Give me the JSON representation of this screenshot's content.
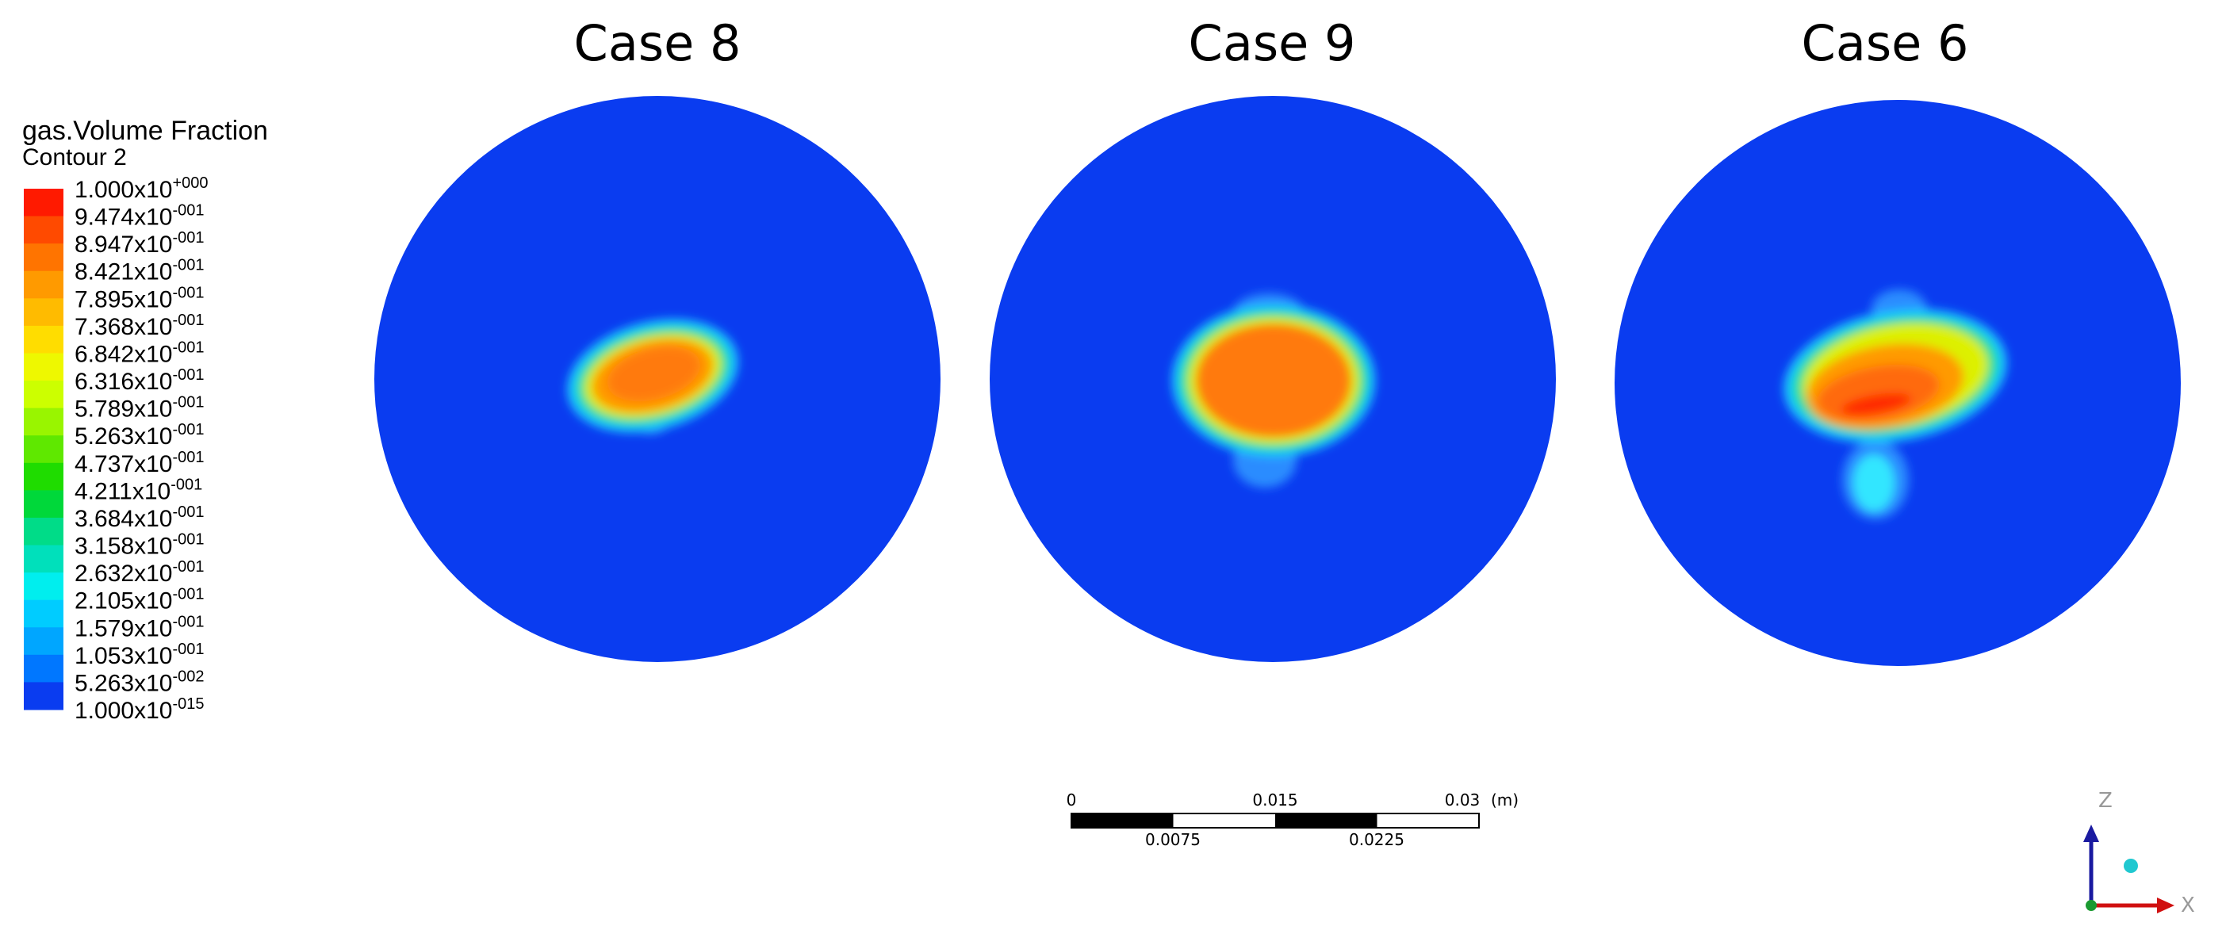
{
  "panels": [
    {
      "title": "Case 8"
    },
    {
      "title": "Case 9"
    },
    {
      "title": "Case 6"
    }
  ],
  "legend": {
    "title": "gas.Volume Fraction",
    "subtitle": "Contour 2",
    "levels": [
      {
        "mantissa": "1.000x10",
        "exponent": "+000"
      },
      {
        "mantissa": "9.474x10",
        "exponent": "-001"
      },
      {
        "mantissa": "8.947x10",
        "exponent": "-001"
      },
      {
        "mantissa": "8.421x10",
        "exponent": "-001"
      },
      {
        "mantissa": "7.895x10",
        "exponent": "-001"
      },
      {
        "mantissa": "7.368x10",
        "exponent": "-001"
      },
      {
        "mantissa": "6.842x10",
        "exponent": "-001"
      },
      {
        "mantissa": "6.316x10",
        "exponent": "-001"
      },
      {
        "mantissa": "5.789x10",
        "exponent": "-001"
      },
      {
        "mantissa": "5.263x10",
        "exponent": "-001"
      },
      {
        "mantissa": "4.737x10",
        "exponent": "-001"
      },
      {
        "mantissa": "4.211x10",
        "exponent": "-001"
      },
      {
        "mantissa": "3.684x10",
        "exponent": "-001"
      },
      {
        "mantissa": "3.158x10",
        "exponent": "-001"
      },
      {
        "mantissa": "2.632x10",
        "exponent": "-001"
      },
      {
        "mantissa": "2.105x10",
        "exponent": "-001"
      },
      {
        "mantissa": "1.579x10",
        "exponent": "-001"
      },
      {
        "mantissa": "1.053x10",
        "exponent": "-001"
      },
      {
        "mantissa": "5.263x10",
        "exponent": "-002"
      },
      {
        "mantissa": "1.000x10",
        "exponent": "-015"
      }
    ],
    "band_colors": [
      "#ff1a00",
      "#ff4a00",
      "#ff7400",
      "#ff9a00",
      "#ffbb00",
      "#ffdd00",
      "#eef800",
      "#ccff00",
      "#99f500",
      "#5fe800",
      "#1fdc00",
      "#00d83a",
      "#00dc88",
      "#00e0bb",
      "#00eeee",
      "#00ccff",
      "#00a6ff",
      "#0077ff",
      "#0a3cf0"
    ]
  },
  "scale_bar": {
    "top_labels": [
      "0",
      "0.015",
      "0.03"
    ],
    "unit": "(m)",
    "bottom_labels": [
      "0.0075",
      "0.0225"
    ]
  },
  "triad": {
    "z": "Z",
    "x": "X"
  }
}
